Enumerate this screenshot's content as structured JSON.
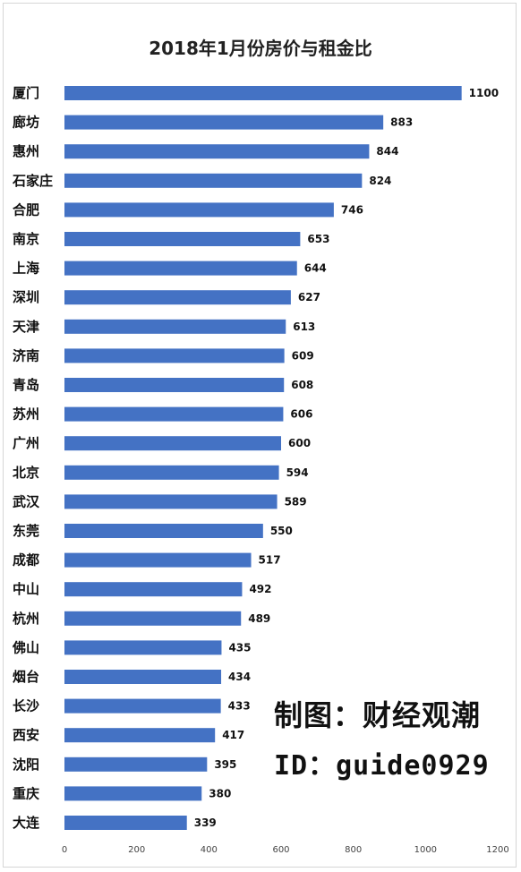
{
  "chart_data": {
    "type": "bar",
    "orientation": "horizontal",
    "title": "2018年1月份房价与租金比",
    "categories": [
      "厦门",
      "廊坊",
      "惠州",
      "石家庄",
      "合肥",
      "南京",
      "上海",
      "深圳",
      "天津",
      "济南",
      "青岛",
      "苏州",
      "广州",
      "北京",
      "武汉",
      "东莞",
      "成都",
      "中山",
      "杭州",
      "佛山",
      "烟台",
      "长沙",
      "西安",
      "沈阳",
      "重庆",
      "大连"
    ],
    "values": [
      1100,
      883,
      844,
      824,
      746,
      653,
      644,
      627,
      613,
      609,
      608,
      606,
      600,
      594,
      589,
      550,
      517,
      492,
      489,
      435,
      434,
      433,
      417,
      395,
      380,
      339
    ],
    "xlim": [
      0,
      1200
    ],
    "xticks": [
      0,
      200,
      400,
      600,
      800,
      1000,
      1200
    ],
    "grid": false,
    "legend": "none",
    "bar_color": "#4472C4"
  },
  "watermark": {
    "line1": "制图：财经观潮",
    "line2": "ID：guide0929"
  }
}
